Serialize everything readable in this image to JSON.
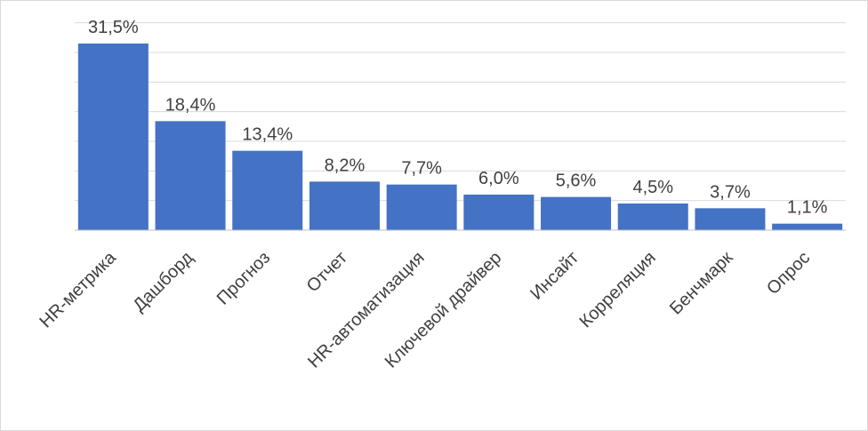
{
  "chart_data": {
    "type": "bar",
    "categories": [
      "HR-метрика",
      "Дашборд",
      "Прогноз",
      "Отчет",
      "HR-автоматизация",
      "Ключевой драйвер",
      "Инсайт",
      "Корреляция",
      "Бенчмарк",
      "Опрос"
    ],
    "values": [
      31.5,
      18.4,
      13.4,
      8.2,
      7.7,
      6.0,
      5.6,
      4.5,
      3.7,
      1.1
    ],
    "data_labels": [
      "31,5%",
      "18,4%",
      "13,4%",
      "8,2%",
      "7,7%",
      "6,0%",
      "5,6%",
      "4,5%",
      "3,7%",
      "1,1%"
    ],
    "title": "",
    "xlabel": "",
    "ylabel": "",
    "ylim": [
      0,
      35
    ],
    "grid": true,
    "legend": "none",
    "colors": {
      "bar": "#4472C4",
      "grid": "#d9d9d9",
      "axis": "#bfbfbf",
      "text": "#404040"
    }
  }
}
